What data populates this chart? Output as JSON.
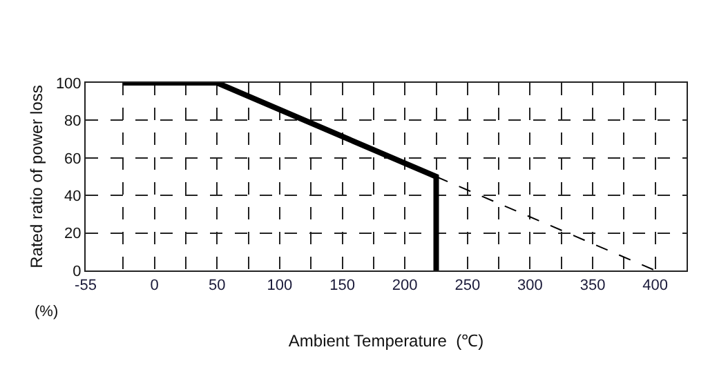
{
  "chart_data": {
    "type": "line",
    "xlabel": "Ambient Temperature  (℃)",
    "ylabel": "Rated ratio of power loss",
    "annotations": [
      "(%)"
    ],
    "series": [
      {
        "color": "#000000",
        "x": [
          -25,
          50,
          225,
          225
        ],
        "values": [
          100,
          100,
          50,
          0
        ],
        "line_style": "solid"
      },
      {
        "color": "#000000",
        "x": [
          225,
          400
        ],
        "values": [
          50,
          0
        ],
        "line_style": "dashed"
      }
    ],
    "xlim": [
      -55,
      425
    ],
    "xticks": [
      -55,
      {
        "value": -25,
        "label": null
      },
      0,
      {
        "value": 25,
        "label": null
      },
      50,
      {
        "value": 75,
        "label": null
      },
      100,
      {
        "value": 125,
        "label": null
      },
      150,
      {
        "value": 175,
        "label": null
      },
      200,
      {
        "value": 225,
        "label": null
      },
      250,
      {
        "value": 275,
        "label": null
      },
      300,
      {
        "value": 325,
        "label": null
      },
      350,
      {
        "value": 375,
        "label": null
      },
      400
    ],
    "ylim": [
      0,
      100
    ],
    "yticks": [
      0,
      20,
      40,
      60,
      80,
      100
    ],
    "grid": true,
    "legend": false,
    "marker": "none"
  }
}
